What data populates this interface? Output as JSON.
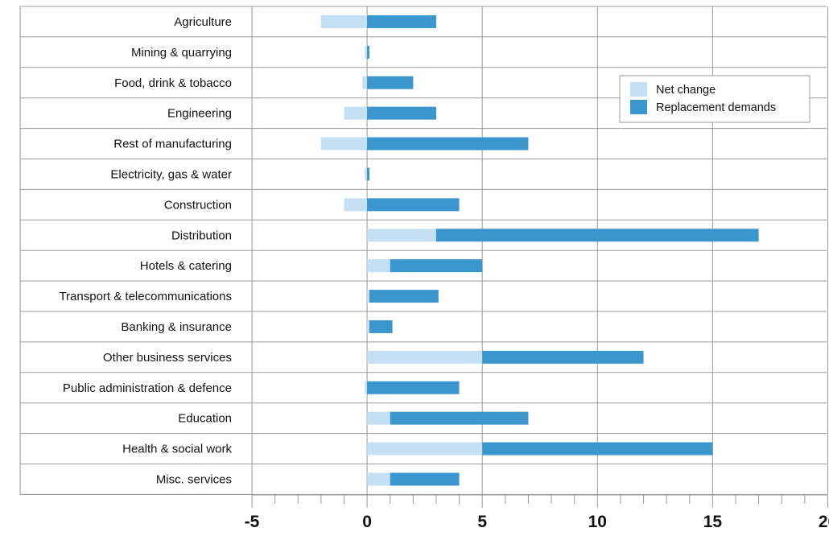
{
  "chart_data": {
    "type": "bar",
    "orientation": "horizontal",
    "stacked": true,
    "title": "",
    "xlabel": "",
    "ylabel": "",
    "xlim": [
      -5,
      20
    ],
    "x_ticks": [
      -5,
      0,
      5,
      10,
      15,
      20
    ],
    "x_tick_labels": [
      "-5",
      "0",
      "5",
      "10",
      "15",
      "20"
    ],
    "minor_tick_step": 1,
    "grid": true,
    "legend_position": "top-right",
    "categories": [
      "Agriculture",
      "Mining & quarrying",
      "Food, drink & tobacco",
      "Engineering",
      "Rest of manufacturing",
      "Electricity, gas & water",
      "Construction",
      "Distribution",
      "Hotels & catering",
      "Transport & telecommunications",
      "Banking & insurance",
      "Other business services",
      "Public administration & defence",
      "Education",
      "Health & social work",
      "Misc. services"
    ],
    "series": [
      {
        "name": "Net change",
        "color": "#c5dff5",
        "values": [
          -2,
          -0.1,
          -0.2,
          -1,
          -2,
          -0.1,
          -1,
          3,
          1,
          0.1,
          0.1,
          5,
          -0.1,
          1,
          5,
          1
        ]
      },
      {
        "name": "Replacement demands",
        "color": "#3a96cc",
        "values": [
          3,
          0.1,
          2,
          3,
          7,
          0.1,
          4,
          14,
          4,
          3,
          1,
          7,
          4,
          6,
          10,
          3
        ]
      }
    ]
  }
}
